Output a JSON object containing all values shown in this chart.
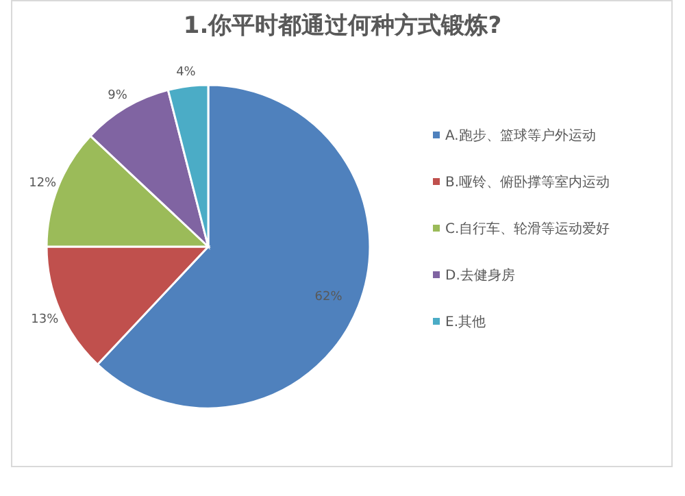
{
  "chart_data": {
    "type": "pie",
    "title": "1.你平时都通过何种方式锻炼?",
    "categories": [
      "A.跑步、篮球等户外运动",
      "B.哑铃、俯卧撑等室内运动",
      "C.自行车、轮滑等运动爱好",
      "D.去健身房",
      "E.其他"
    ],
    "values": [
      62,
      13,
      12,
      9,
      4
    ],
    "colors": [
      "#4f81bd",
      "#c0504d",
      "#9bbb59",
      "#8064a2",
      "#4bacc6"
    ],
    "value_labels": [
      "62%",
      "13%",
      "12%",
      "9%",
      "4%"
    ],
    "legend": "right"
  }
}
